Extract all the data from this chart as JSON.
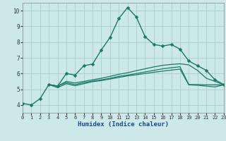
{
  "background_color": "#cce8e8",
  "grid_color": "#aacfcf",
  "line_color": "#1a7a6a",
  "xlabel": "Humidex (Indice chaleur)",
  "xlim": [
    0,
    23
  ],
  "ylim": [
    3.5,
    10.5
  ],
  "xticks": [
    0,
    1,
    2,
    3,
    4,
    5,
    6,
    7,
    8,
    9,
    10,
    11,
    12,
    13,
    14,
    15,
    16,
    17,
    18,
    19,
    20,
    21,
    22,
    23
  ],
  "yticks": [
    4,
    5,
    6,
    7,
    8,
    9,
    10
  ],
  "series": [
    {
      "x": [
        0,
        1,
        2,
        3,
        4,
        5,
        6,
        7,
        8,
        9,
        10,
        11,
        12,
        13,
        14,
        15,
        16,
        17,
        18,
        19,
        20,
        21,
        22,
        23
      ],
      "y": [
        4.1,
        4.0,
        4.4,
        5.3,
        5.2,
        6.0,
        5.9,
        6.5,
        6.6,
        7.5,
        8.3,
        9.5,
        10.2,
        9.6,
        8.35,
        7.85,
        7.75,
        7.85,
        7.55,
        6.8,
        6.5,
        6.2,
        5.6,
        5.3
      ],
      "marker": "D",
      "markersize": 2.5,
      "linewidth": 1.0
    },
    {
      "x": [
        3,
        4,
        5,
        6,
        7,
        8,
        9,
        10,
        11,
        12,
        13,
        14,
        15,
        16,
        17,
        18,
        19,
        20,
        21,
        22,
        23
      ],
      "y": [
        5.3,
        5.2,
        5.5,
        5.4,
        5.5,
        5.6,
        5.7,
        5.82,
        5.95,
        6.05,
        6.18,
        6.3,
        6.42,
        6.52,
        6.58,
        6.62,
        6.55,
        6.2,
        5.7,
        5.5,
        5.28
      ],
      "marker": null,
      "linewidth": 0.9
    },
    {
      "x": [
        3,
        4,
        5,
        6,
        7,
        8,
        9,
        10,
        11,
        12,
        13,
        14,
        15,
        16,
        17,
        18,
        19,
        20,
        21,
        22,
        23
      ],
      "y": [
        5.3,
        5.2,
        5.42,
        5.3,
        5.42,
        5.52,
        5.6,
        5.7,
        5.82,
        5.9,
        6.0,
        6.1,
        6.2,
        6.3,
        6.37,
        6.43,
        5.3,
        5.3,
        5.28,
        5.28,
        5.28
      ],
      "marker": null,
      "linewidth": 0.9
    },
    {
      "x": [
        3,
        4,
        5,
        6,
        7,
        8,
        9,
        10,
        11,
        12,
        13,
        14,
        15,
        16,
        17,
        18,
        19,
        20,
        21,
        22,
        23
      ],
      "y": [
        5.3,
        5.1,
        5.35,
        5.22,
        5.35,
        5.48,
        5.55,
        5.65,
        5.75,
        5.85,
        5.92,
        6.0,
        6.08,
        6.15,
        6.22,
        6.28,
        5.28,
        5.25,
        5.2,
        5.15,
        5.28
      ],
      "marker": null,
      "linewidth": 0.9
    }
  ]
}
